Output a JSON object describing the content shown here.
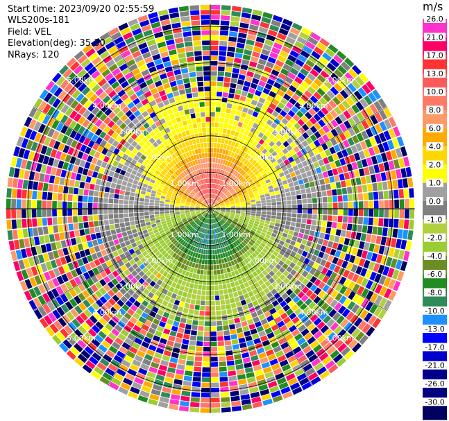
{
  "info": {
    "start_time": "Start time: 2023/09/20 02:55:59",
    "device": "WLS200s-181",
    "field": "Field: VEL",
    "elevation": "Elevation(deg): 35.30",
    "nrays": "NRays: 120"
  },
  "colorbar": {
    "title": "m/s",
    "bins": [
      {
        "label": "26.0",
        "color": "#ff33cc"
      },
      {
        "label": "21.0",
        "color": "#ff0066"
      },
      {
        "label": "17.0",
        "color": "#ff3333"
      },
      {
        "label": "13.0",
        "color": "#ff5a5a"
      },
      {
        "label": "10.0",
        "color": "#ff7a66"
      },
      {
        "label": "8.0",
        "color": "#ff9966"
      },
      {
        "label": "6.0",
        "color": "#ffaa00"
      },
      {
        "label": "4.0",
        "color": "#ffd700"
      },
      {
        "label": "2.0",
        "color": "#ffff00"
      },
      {
        "label": "1.0",
        "color": "#a0a0a0"
      },
      {
        "label": "0.0",
        "color": "#808080"
      },
      {
        "label": "-1.0",
        "color": "#b0d040"
      },
      {
        "label": "-2.0",
        "color": "#9acd32"
      },
      {
        "label": "-4.0",
        "color": "#6b8e23"
      },
      {
        "label": "-6.0",
        "color": "#228b22"
      },
      {
        "label": "-8.0",
        "color": "#2e8b57"
      },
      {
        "label": "-10.0",
        "color": "#1e90ff"
      },
      {
        "label": "-13.0",
        "color": "#0000ff"
      },
      {
        "label": "-17.0",
        "color": "#0000cd"
      },
      {
        "label": "-21.0",
        "color": "#00008b"
      },
      {
        "label": "-26.0",
        "color": "#000080"
      },
      {
        "label": "-30.0",
        "color": "#000060"
      }
    ]
  },
  "chart_data": {
    "type": "heatmap",
    "projection": "polar",
    "field": "VEL",
    "units": "m/s",
    "nrays": 120,
    "range_rings": [
      {
        "label": "1.00km",
        "km": 1
      },
      {
        "label": "2.00km",
        "km": 2
      },
      {
        "label": "3.00km",
        "km": 3
      },
      {
        "label": "4.00km",
        "km": 4
      },
      {
        "label": "5.00km",
        "km": 5
      }
    ],
    "max_range_km": 5.6,
    "pattern": {
      "north_half": "positive velocities peaking near 8-10 m/s around 1 km range to the north",
      "south_half": "negative velocities down to about -8 m/s around 1 km range to the south",
      "outer": "noisy random values beyond about 2.8 km"
    },
    "grid": true
  }
}
